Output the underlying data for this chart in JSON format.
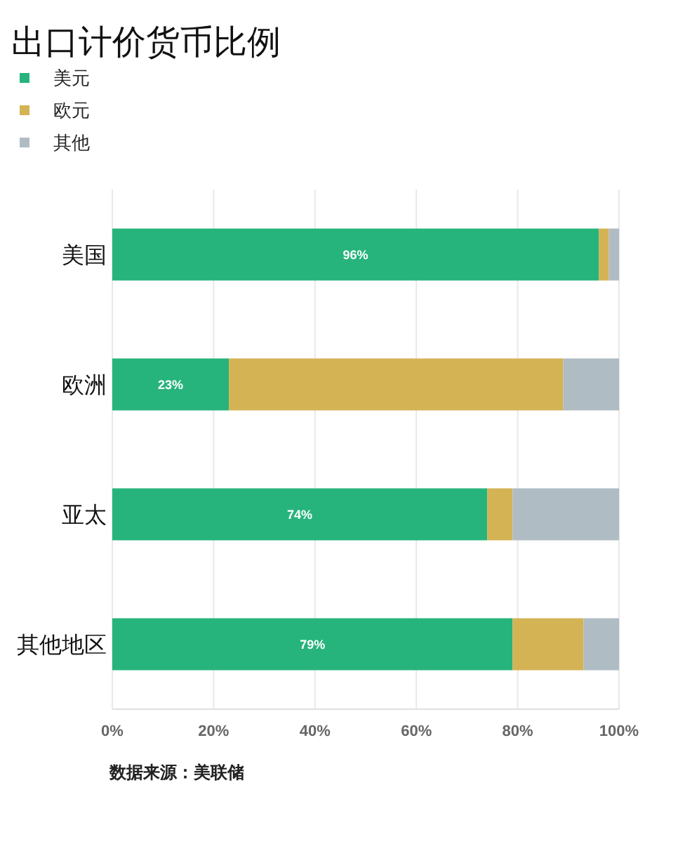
{
  "chart_data": {
    "type": "bar",
    "orientation": "horizontal",
    "stacked": true,
    "title": "出口计价货币比例",
    "categories": [
      "美国",
      "欧洲",
      "亚太",
      "其他地区"
    ],
    "series": [
      {
        "name": "美元",
        "color": "#26b47c",
        "values": [
          96,
          23,
          74,
          79
        ],
        "value_labels": [
          "96%",
          "23%",
          "74%",
          "79%"
        ]
      },
      {
        "name": "欧元",
        "color": "#d4b355",
        "values": [
          2,
          66,
          5,
          14
        ]
      },
      {
        "name": "其他",
        "color": "#b0bcc4",
        "values": [
          2,
          11,
          21,
          7
        ]
      }
    ],
    "xlim": [
      0,
      100
    ],
    "xticks": [
      {
        "value": 0,
        "label": "0%"
      },
      {
        "value": 20,
        "label": "20%"
      },
      {
        "value": 40,
        "label": "40%"
      },
      {
        "value": 60,
        "label": "60%"
      },
      {
        "value": 80,
        "label": "80%"
      },
      {
        "value": 100,
        "label": "100%"
      }
    ],
    "grid": "x",
    "legend": "top left",
    "annotations": [
      "数据来源：美联储"
    ]
  }
}
